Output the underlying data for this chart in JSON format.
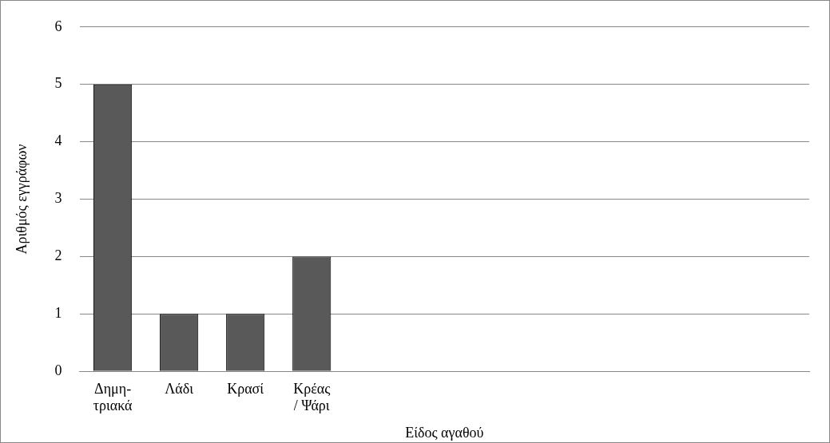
{
  "chart_data": {
    "type": "bar",
    "xlabel": "Είδος αγαθού",
    "ylabel": "Αριθμός εγγράφων",
    "categories": [
      "Δημη-\nτριακά",
      "Λάδι",
      "Κρασί",
      "Κρέας\n/ Ψάρι",
      null,
      null,
      null,
      null,
      null,
      null,
      null
    ],
    "values": [
      5,
      1,
      1,
      2,
      null,
      null,
      null,
      null,
      null,
      null,
      null
    ],
    "color": "#595959",
    "ylim": [
      0,
      6
    ],
    "yticks": [
      0,
      1,
      2,
      3,
      4,
      5,
      6
    ],
    "grid": "y",
    "legend": false
  }
}
